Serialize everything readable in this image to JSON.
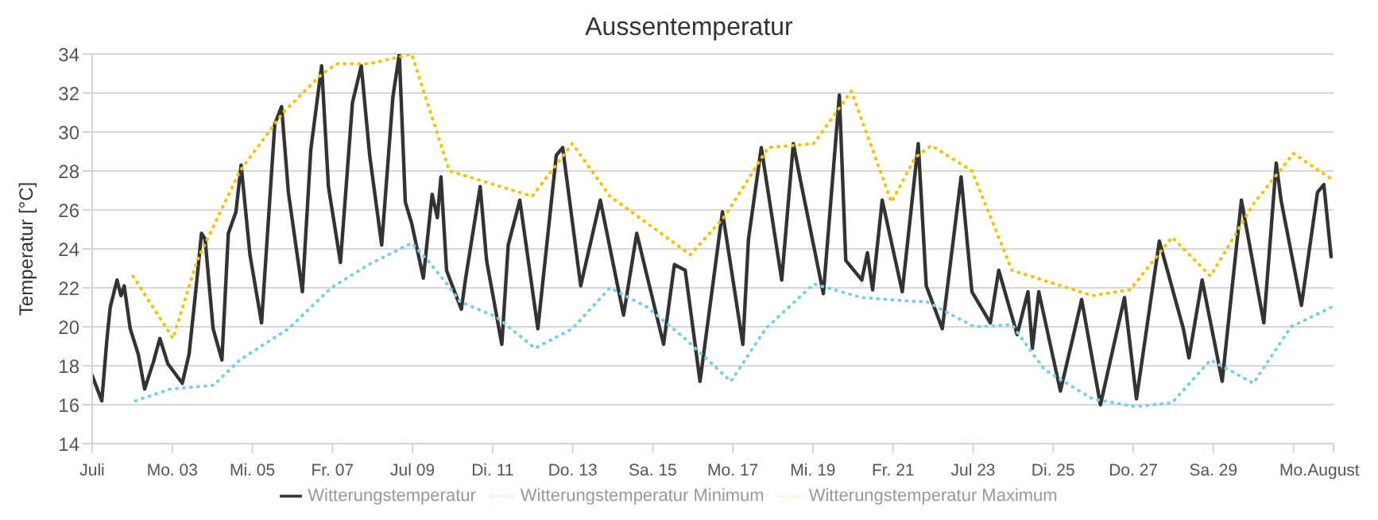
{
  "chart_data": {
    "type": "line",
    "title": "Aussentemperatur",
    "ylabel": "Temperatur [°C]",
    "xlim": [
      1,
      32
    ],
    "xticks": [
      {
        "value": 1,
        "label": "Juli"
      },
      {
        "value": 3,
        "label": "Mo. 03"
      },
      {
        "value": 5,
        "label": "Mi. 05"
      },
      {
        "value": 7,
        "label": "Fr. 07"
      },
      {
        "value": 9,
        "label": "Jul 09"
      },
      {
        "value": 11,
        "label": "Di. 11"
      },
      {
        "value": 13,
        "label": "Do. 13"
      },
      {
        "value": 15,
        "label": "Sa. 15"
      },
      {
        "value": 17,
        "label": "Mo. 17"
      },
      {
        "value": 19,
        "label": "Mi. 19"
      },
      {
        "value": 21,
        "label": "Fr. 21"
      },
      {
        "value": 23,
        "label": "Jul 23"
      },
      {
        "value": 25,
        "label": "Di. 25"
      },
      {
        "value": 27,
        "label": "Do. 27"
      },
      {
        "value": 29,
        "label": "Sa. 29"
      },
      {
        "value": 31,
        "label": "Mo."
      },
      {
        "value": 32,
        "label": "August"
      }
    ],
    "ylim": [
      14,
      34
    ],
    "yticks": [
      14,
      16,
      18,
      20,
      22,
      24,
      26,
      28,
      30,
      32,
      34
    ],
    "grid": "y",
    "legend": "bottom",
    "marker": "none",
    "series": [
      {
        "name": "Witterungstemperatur",
        "color": "#333333",
        "line_style": "solid",
        "x": [
          1,
          1.24,
          1.37,
          1.45,
          1.62,
          1.72,
          1.8,
          1.95,
          2.15,
          2.31,
          2.53,
          2.69,
          2.89,
          3.25,
          3.42,
          3.6,
          3.73,
          3.82,
          4.02,
          4.24,
          4.4,
          4.59,
          4.72,
          4.94,
          5.23,
          5.56,
          5.73,
          5.9,
          6.25,
          6.46,
          6.73,
          6.9,
          7.2,
          7.5,
          7.72,
          7.93,
          8.23,
          8.51,
          8.67,
          8.82,
          8.98,
          9.27,
          9.49,
          9.62,
          9.71,
          9.85,
          10.05,
          10.22,
          10.32,
          10.69,
          10.85,
          11.23,
          11.39,
          11.68,
          12.13,
          12.59,
          12.75,
          13.2,
          13.69,
          14.27,
          14.6,
          15.27,
          15.54,
          15.81,
          16.18,
          16.74,
          17.25,
          17.39,
          17.71,
          18.22,
          18.51,
          18.69,
          19.26,
          19.66,
          19.82,
          20.22,
          20.36,
          20.49,
          20.73,
          21.23,
          21.63,
          21.83,
          22.23,
          22.7,
          22.97,
          23.43,
          23.64,
          24.1,
          24.37,
          24.48,
          24.64,
          25.18,
          25.51,
          25.71,
          26.18,
          26.78,
          27.08,
          27.65,
          28.25,
          28.39,
          28.72,
          29.22,
          29.7,
          30.26,
          30.57,
          30.69,
          31.2,
          31.6,
          31.76,
          31.94
        ],
        "values": [
          17.5,
          16.2,
          19.4,
          21.0,
          22.4,
          21.6,
          22.1,
          19.9,
          18.6,
          16.8,
          18.2,
          19.4,
          18.1,
          17.1,
          18.6,
          22.1,
          24.8,
          24.5,
          19.9,
          18.3,
          24.8,
          25.9,
          28.3,
          23.7,
          20.2,
          30.4,
          31.3,
          26.9,
          21.8,
          29.1,
          33.4,
          27.2,
          23.3,
          31.5,
          33.4,
          28.8,
          24.2,
          31.8,
          34.0,
          26.4,
          25.3,
          22.5,
          26.8,
          25.6,
          27.7,
          22.9,
          21.8,
          20.9,
          22.4,
          27.2,
          23.4,
          19.1,
          24.2,
          26.5,
          19.9,
          28.8,
          29.2,
          22.1,
          26.5,
          20.6,
          24.8,
          19.1,
          23.2,
          22.9,
          17.2,
          25.9,
          19.1,
          24.5,
          29.2,
          22.4,
          29.4,
          27.5,
          21.7,
          31.9,
          23.4,
          22.4,
          23.8,
          21.9,
          26.5,
          21.8,
          29.4,
          22.1,
          19.9,
          27.7,
          21.8,
          20.2,
          22.9,
          19.6,
          21.8,
          18.9,
          21.8,
          16.7,
          19.6,
          21.4,
          16.0,
          21.5,
          16.3,
          24.4,
          19.9,
          18.4,
          22.4,
          17.2,
          26.5,
          20.2,
          28.4,
          26.5,
          21.1,
          26.9,
          27.3,
          23.6
        ]
      },
      {
        "name": "Witterungstemperatur Minimum",
        "color": "#7ecde8",
        "line_style": "dotted",
        "x": [
          2.08,
          2.95,
          4.03,
          4.69,
          5.9,
          6.97,
          7.91,
          8.98,
          9.38,
          9.9,
          10.18,
          11.1,
          12.06,
          12.99,
          13.93,
          14.87,
          15.8,
          16.95,
          17.82,
          19.02,
          20.22,
          21.56,
          21.83,
          23.03,
          23.97,
          24.78,
          25.98,
          27.05,
          27.97,
          28.93,
          30.0,
          30.94,
          31.94
        ],
        "values": [
          16.2,
          16.8,
          17.0,
          18.3,
          19.9,
          22.0,
          23.2,
          24.3,
          23.4,
          22.1,
          21.3,
          20.5,
          18.9,
          19.9,
          22.0,
          21.0,
          19.4,
          17.2,
          19.9,
          22.2,
          21.5,
          21.3,
          21.3,
          20.0,
          20.1,
          17.8,
          16.3,
          15.9,
          16.1,
          18.3,
          17.1,
          20.0,
          21.0
        ]
      },
      {
        "name": "Witterungstemperatur Maximum",
        "color": "#f0c400",
        "line_style": "dotted",
        "x": [
          2.02,
          3.02,
          3.62,
          4.69,
          5.77,
          6.7,
          7.1,
          7.91,
          8.98,
          9.92,
          11.99,
          12.99,
          13.93,
          15.94,
          16.81,
          17.88,
          19.02,
          19.96,
          20.96,
          21.56,
          21.96,
          22.97,
          23.97,
          25.98,
          26.92,
          27.97,
          28.93,
          30.0,
          31.0,
          31.94
        ],
        "values": [
          22.6,
          19.4,
          23.4,
          28.0,
          31.0,
          32.9,
          33.5,
          33.5,
          34.0,
          28.0,
          26.7,
          29.4,
          26.7,
          23.7,
          25.7,
          29.2,
          29.4,
          32.1,
          26.4,
          28.7,
          29.3,
          28.0,
          22.9,
          21.6,
          21.9,
          24.6,
          22.6,
          26.3,
          28.9,
          27.6
        ]
      }
    ]
  }
}
